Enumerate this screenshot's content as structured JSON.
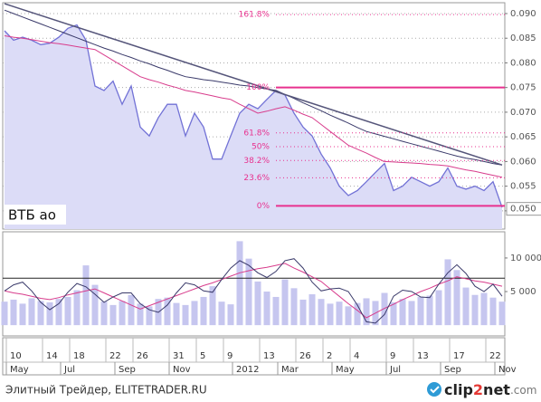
{
  "chart_data": [
    {
      "type": "line",
      "ylim": [
        0.0463,
        0.0922
      ],
      "yticks": [
        {
          "value": 0.05,
          "label": "0.050"
        },
        0.055,
        {
          "value": 0.06,
          "label": "0.060"
        },
        0.065,
        {
          "value": 0.07,
          "label": "0.070"
        },
        0.075,
        {
          "value": 0.08,
          "label": "0.080"
        },
        0.085,
        {
          "value": 0.09,
          "label": "0.090"
        }
      ],
      "grid": true,
      "annotation": "ВТБ ао",
      "last_price": {
        "value": 0.0504,
        "label": "0.050"
      },
      "series": [
        {
          "color": "#7272d6",
          "fill": "#dcdcf7",
          "values": [
            0.0865,
            0.0846,
            0.0852,
            0.0846,
            0.0837,
            0.084,
            0.0852,
            0.087,
            0.0877,
            0.0846,
            0.0753,
            0.0744,
            0.0763,
            0.0716,
            0.0753,
            0.067,
            0.0652,
            0.0689,
            0.0716,
            0.0716,
            0.0652,
            0.0698,
            0.067,
            0.0605,
            0.0605,
            0.0652,
            0.0698,
            0.0716,
            0.0707,
            0.0726,
            0.0744,
            0.0735,
            0.0698,
            0.067,
            0.0652,
            0.0615,
            0.0587,
            0.055,
            0.0531,
            0.0541,
            0.0559,
            0.0578,
            0.0596,
            0.0541,
            0.055,
            0.0568,
            0.0559,
            0.055,
            0.0559,
            0.0587,
            0.055,
            0.0544,
            0.055,
            0.0541,
            0.0559,
            0.0507
          ]
        },
        {
          "color": "#d83c8c",
          "values": [
            0.0855,
            0.0852,
            0.085,
            0.0847,
            0.0844,
            0.0841,
            0.0839,
            0.0836,
            0.0833,
            0.083,
            0.0827,
            0.0816,
            0.0805,
            0.0794,
            0.0783,
            0.0772,
            0.0766,
            0.0761,
            0.0755,
            0.075,
            0.0744,
            0.0741,
            0.0737,
            0.0733,
            0.0729,
            0.0726,
            0.0716,
            0.0707,
            0.0698,
            0.0702,
            0.0707,
            0.0711,
            0.0704,
            0.0696,
            0.0689,
            0.0675,
            0.0661,
            0.0647,
            0.0633,
            0.0625,
            0.0617,
            0.0608,
            0.06,
            0.0599,
            0.0598,
            0.0597,
            0.0596,
            0.0594,
            0.0593,
            0.0591,
            0.0587,
            0.0583,
            0.058,
            0.0576,
            0.0572,
            0.0568
          ]
        },
        {
          "color": "#3a3a6a",
          "values": [
            0.0907,
            0.09,
            0.0893,
            0.0886,
            0.0879,
            0.0872,
            0.0865,
            0.0858,
            0.0851,
            0.0844,
            0.0837,
            0.083,
            0.0824,
            0.0817,
            0.0811,
            0.0804,
            0.0798,
            0.0791,
            0.0785,
            0.0778,
            0.0772,
            0.0769,
            0.0766,
            0.0764,
            0.0761,
            0.0758,
            0.0755,
            0.0753,
            0.075,
            0.0747,
            0.0744,
            0.0736,
            0.0728,
            0.0719,
            0.0711,
            0.0703,
            0.0694,
            0.0686,
            0.0678,
            0.0669,
            0.0661,
            0.0656,
            0.0651,
            0.0646,
            0.0641,
            0.0636,
            0.0631,
            0.0626,
            0.0621,
            0.0616,
            0.0611,
            0.0607,
            0.0604,
            0.06,
            0.0596,
            0.0593
          ]
        }
      ],
      "trendline": {
        "color": "#55557a",
        "values": [
          0.092,
          0.0593
        ]
      },
      "fib_color": "#e8318e",
      "fib_levels": [
        {
          "label": "161.8%",
          "price": 0.0898,
          "line": "dotted"
        },
        {
          "label": "100%",
          "price": 0.075,
          "line": "solid"
        },
        {
          "label": "61.8%",
          "price": 0.0658,
          "line": "dotted"
        },
        {
          "label": "50%",
          "price": 0.063,
          "line": "dotted"
        },
        {
          "label": "38.2%",
          "price": 0.0602,
          "line": "dotted"
        },
        {
          "label": "23.6%",
          "price": 0.0567,
          "line": "dotted"
        },
        {
          "label": "0%",
          "price": 0.051,
          "line": "solid"
        }
      ]
    },
    {
      "type": "bar",
      "ylim": [
        -1600,
        13900
      ],
      "yticks": [
        {
          "value": 5000,
          "label": "5 000"
        },
        {
          "value": 10000,
          "label": "10 000"
        }
      ],
      "color": "#c6c6ef",
      "hlines": [
        7000
      ],
      "values": [
        3500,
        3800,
        3200,
        4000,
        3600,
        3400,
        3900,
        4200,
        5200,
        8900,
        6000,
        3500,
        3000,
        3600,
        4500,
        3200,
        2800,
        3900,
        4100,
        3300,
        3000,
        3600,
        4200,
        5800,
        3500,
        3100,
        12500,
        9900,
        6500,
        5000,
        4200,
        6800,
        5500,
        3800,
        4600,
        3900,
        3200,
        3500,
        2800,
        3300,
        4000,
        3600,
        4800,
        3400,
        3900,
        3600,
        4200,
        4400,
        5200,
        9800,
        8200,
        5600,
        4500,
        4800,
        4100,
        3500
      ],
      "series": [
        {
          "color": "#d83c8c",
          "values": [
            5100,
            4800,
            4600,
            4300,
            4000,
            3800,
            4100,
            4500,
            4800,
            5100,
            5400,
            4800,
            4200,
            3600,
            3000,
            2400,
            2900,
            3400,
            3900,
            4400,
            4900,
            5400,
            5900,
            6300,
            6800,
            7300,
            7800,
            8100,
            8400,
            8600,
            8900,
            9200,
            8500,
            7900,
            7200,
            6500,
            5400,
            4300,
            3200,
            2200,
            1100,
            1800,
            2500,
            3100,
            3800,
            4400,
            5000,
            5500,
            6100,
            6600,
            7200,
            6900,
            6600,
            6400,
            6100,
            5800
          ]
        },
        {
          "color": "#3a3a6a",
          "values": [
            5100,
            6000,
            6400,
            5100,
            3400,
            2300,
            3200,
            4900,
            6200,
            5700,
            4600,
            3400,
            4200,
            4800,
            4800,
            3200,
            2300,
            1900,
            3000,
            4800,
            6300,
            6000,
            5100,
            4900,
            6800,
            8500,
            9600,
            8900,
            7800,
            7100,
            8000,
            9600,
            9900,
            8500,
            6400,
            5100,
            5400,
            5500,
            5000,
            3000,
            500,
            300,
            1600,
            4300,
            5200,
            5000,
            4200,
            4100,
            6100,
            7800,
            9000,
            7700,
            5800,
            5000,
            6100,
            4300
          ]
        }
      ],
      "categories": [
        null,
        "10",
        null,
        null,
        null,
        "14",
        null,
        null,
        "18",
        null,
        null,
        null,
        "22",
        null,
        null,
        "26",
        null,
        null,
        null,
        "31",
        null,
        null,
        "5",
        null,
        null,
        "9",
        null,
        null,
        null,
        "13",
        null,
        null,
        null,
        "26",
        null,
        null,
        "2",
        null,
        null,
        "4",
        null,
        null,
        null,
        "9",
        null,
        null,
        "13",
        null,
        null,
        null,
        "17",
        null,
        null,
        null,
        "22",
        null
      ],
      "category_groups": [
        null,
        "May",
        null,
        null,
        null,
        null,
        null,
        "Jul",
        null,
        null,
        null,
        null,
        null,
        "Sep",
        null,
        null,
        null,
        null,
        null,
        "Nov",
        null,
        null,
        null,
        null,
        null,
        null,
        "2012",
        null,
        null,
        null,
        null,
        "Mar",
        null,
        null,
        null,
        null,
        null,
        "May",
        null,
        null,
        null,
        null,
        null,
        "Jul",
        null,
        null,
        null,
        null,
        null,
        "Sep",
        null,
        null,
        null,
        null,
        null,
        "Nov"
      ]
    }
  ],
  "footer": {
    "source": "Элитный Трейдер, ELITETRADER.RU",
    "logo": [
      "clip",
      "2",
      "net",
      ".com"
    ]
  }
}
